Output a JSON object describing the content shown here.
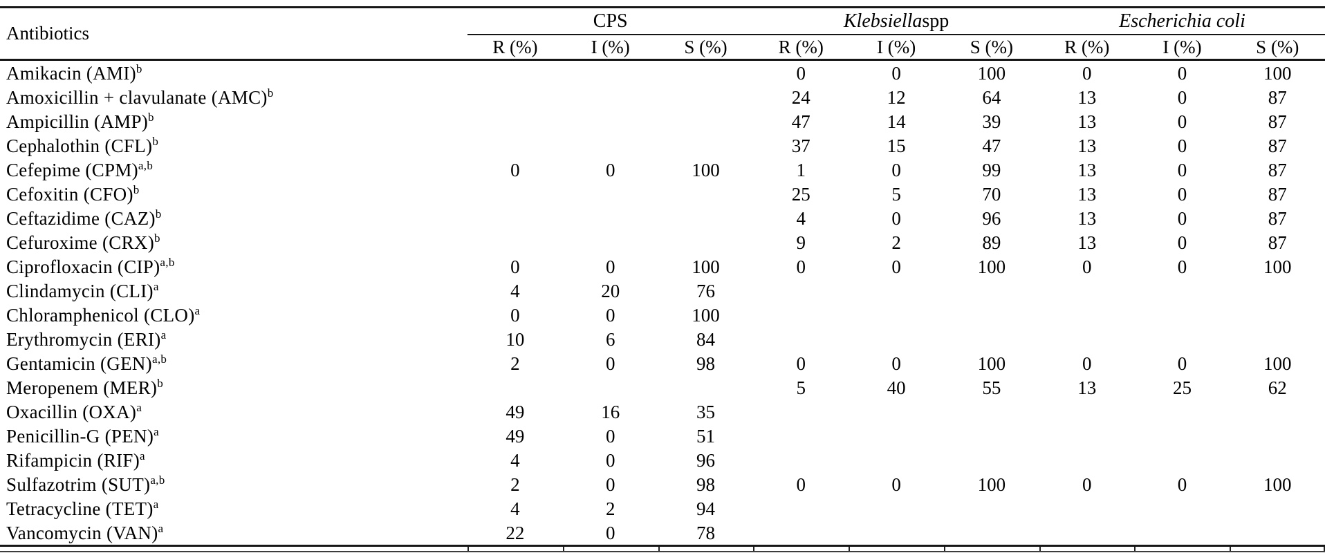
{
  "table": {
    "row_header": "Antibiotics",
    "groups": [
      {
        "italic": "",
        "roman": "CPS"
      },
      {
        "italic": "Klebsiella",
        "roman": "spp"
      },
      {
        "italic": "Escherichia coli",
        "roman": ""
      }
    ],
    "subheaders": [
      "R (%)",
      "I (%)",
      "S (%)"
    ],
    "rows": [
      {
        "name": "Amikacin (AMI)",
        "sup": "b",
        "values": [
          "",
          "",
          "",
          "0",
          "0",
          "100",
          "0",
          "0",
          "100"
        ]
      },
      {
        "name": "Amoxicillin + clavulanate (AMC)",
        "sup": "b",
        "values": [
          "",
          "",
          "",
          "24",
          "12",
          "64",
          "13",
          "0",
          "87"
        ]
      },
      {
        "name": "Ampicillin (AMP)",
        "sup": "b",
        "values": [
          "",
          "",
          "",
          "47",
          "14",
          "39",
          "13",
          "0",
          "87"
        ]
      },
      {
        "name": "Cephalothin (CFL)",
        "sup": "b",
        "values": [
          "",
          "",
          "",
          "37",
          "15",
          "47",
          "13",
          "0",
          "87"
        ]
      },
      {
        "name": "Cefepime (CPM)",
        "sup": "a,b",
        "values": [
          "0",
          "0",
          "100",
          "1",
          "0",
          "99",
          "13",
          "0",
          "87"
        ]
      },
      {
        "name": "Cefoxitin (CFO)",
        "sup": "b",
        "values": [
          "",
          "",
          "",
          "25",
          "5",
          "70",
          "13",
          "0",
          "87"
        ]
      },
      {
        "name": "Ceftazidime (CAZ)",
        "sup": "b",
        "values": [
          "",
          "",
          "",
          "4",
          "0",
          "96",
          "13",
          "0",
          "87"
        ]
      },
      {
        "name": "Cefuroxime (CRX)",
        "sup": "b",
        "values": [
          "",
          "",
          "",
          "9",
          "2",
          "89",
          "13",
          "0",
          "87"
        ]
      },
      {
        "name": "Ciprofloxacin (CIP)",
        "sup": "a,b",
        "values": [
          "0",
          "0",
          "100",
          "0",
          "0",
          "100",
          "0",
          "0",
          "100"
        ]
      },
      {
        "name": "Clindamycin (CLI)",
        "sup": "a",
        "values": [
          "4",
          "20",
          "76",
          "",
          "",
          "",
          "",
          "",
          ""
        ]
      },
      {
        "name": "Chloramphenicol (CLO)",
        "sup": "a",
        "values": [
          "0",
          "0",
          "100",
          "",
          "",
          "",
          "",
          "",
          ""
        ]
      },
      {
        "name": "Erythromycin (ERI)",
        "sup": "a",
        "values": [
          "10",
          "6",
          "84",
          "",
          "",
          "",
          "",
          "",
          ""
        ]
      },
      {
        "name": "Gentamicin (GEN)",
        "sup": "a,b",
        "values": [
          "2",
          "0",
          "98",
          "0",
          "0",
          "100",
          "0",
          "0",
          "100"
        ]
      },
      {
        "name": "Meropenem (MER)",
        "sup": "b",
        "values": [
          "",
          "",
          "",
          "5",
          "40",
          "55",
          "13",
          "25",
          "62"
        ]
      },
      {
        "name": "Oxacillin (OXA)",
        "sup": "a",
        "values": [
          "49",
          "16",
          "35",
          "",
          "",
          "",
          "",
          "",
          ""
        ]
      },
      {
        "name": "Penicillin-G (PEN)",
        "sup": "a",
        "values": [
          "49",
          "0",
          "51",
          "",
          "",
          "",
          "",
          "",
          ""
        ]
      },
      {
        "name": "Rifampicin (RIF)",
        "sup": "a",
        "values": [
          "4",
          "0",
          "96",
          "",
          "",
          "",
          "",
          "",
          ""
        ]
      },
      {
        "name": "Sulfazotrim (SUT)",
        "sup": "a,b",
        "values": [
          "2",
          "0",
          "98",
          "0",
          "0",
          "100",
          "0",
          "0",
          "100"
        ]
      },
      {
        "name": "Tetracycline (TET)",
        "sup": "a",
        "values": [
          "4",
          "2",
          "94",
          "",
          "",
          "",
          "",
          "",
          ""
        ]
      },
      {
        "name": "Vancomycin (VAN)",
        "sup": "a",
        "values": [
          "22",
          "0",
          "78",
          "",
          "",
          "",
          "",
          "",
          ""
        ]
      }
    ]
  }
}
